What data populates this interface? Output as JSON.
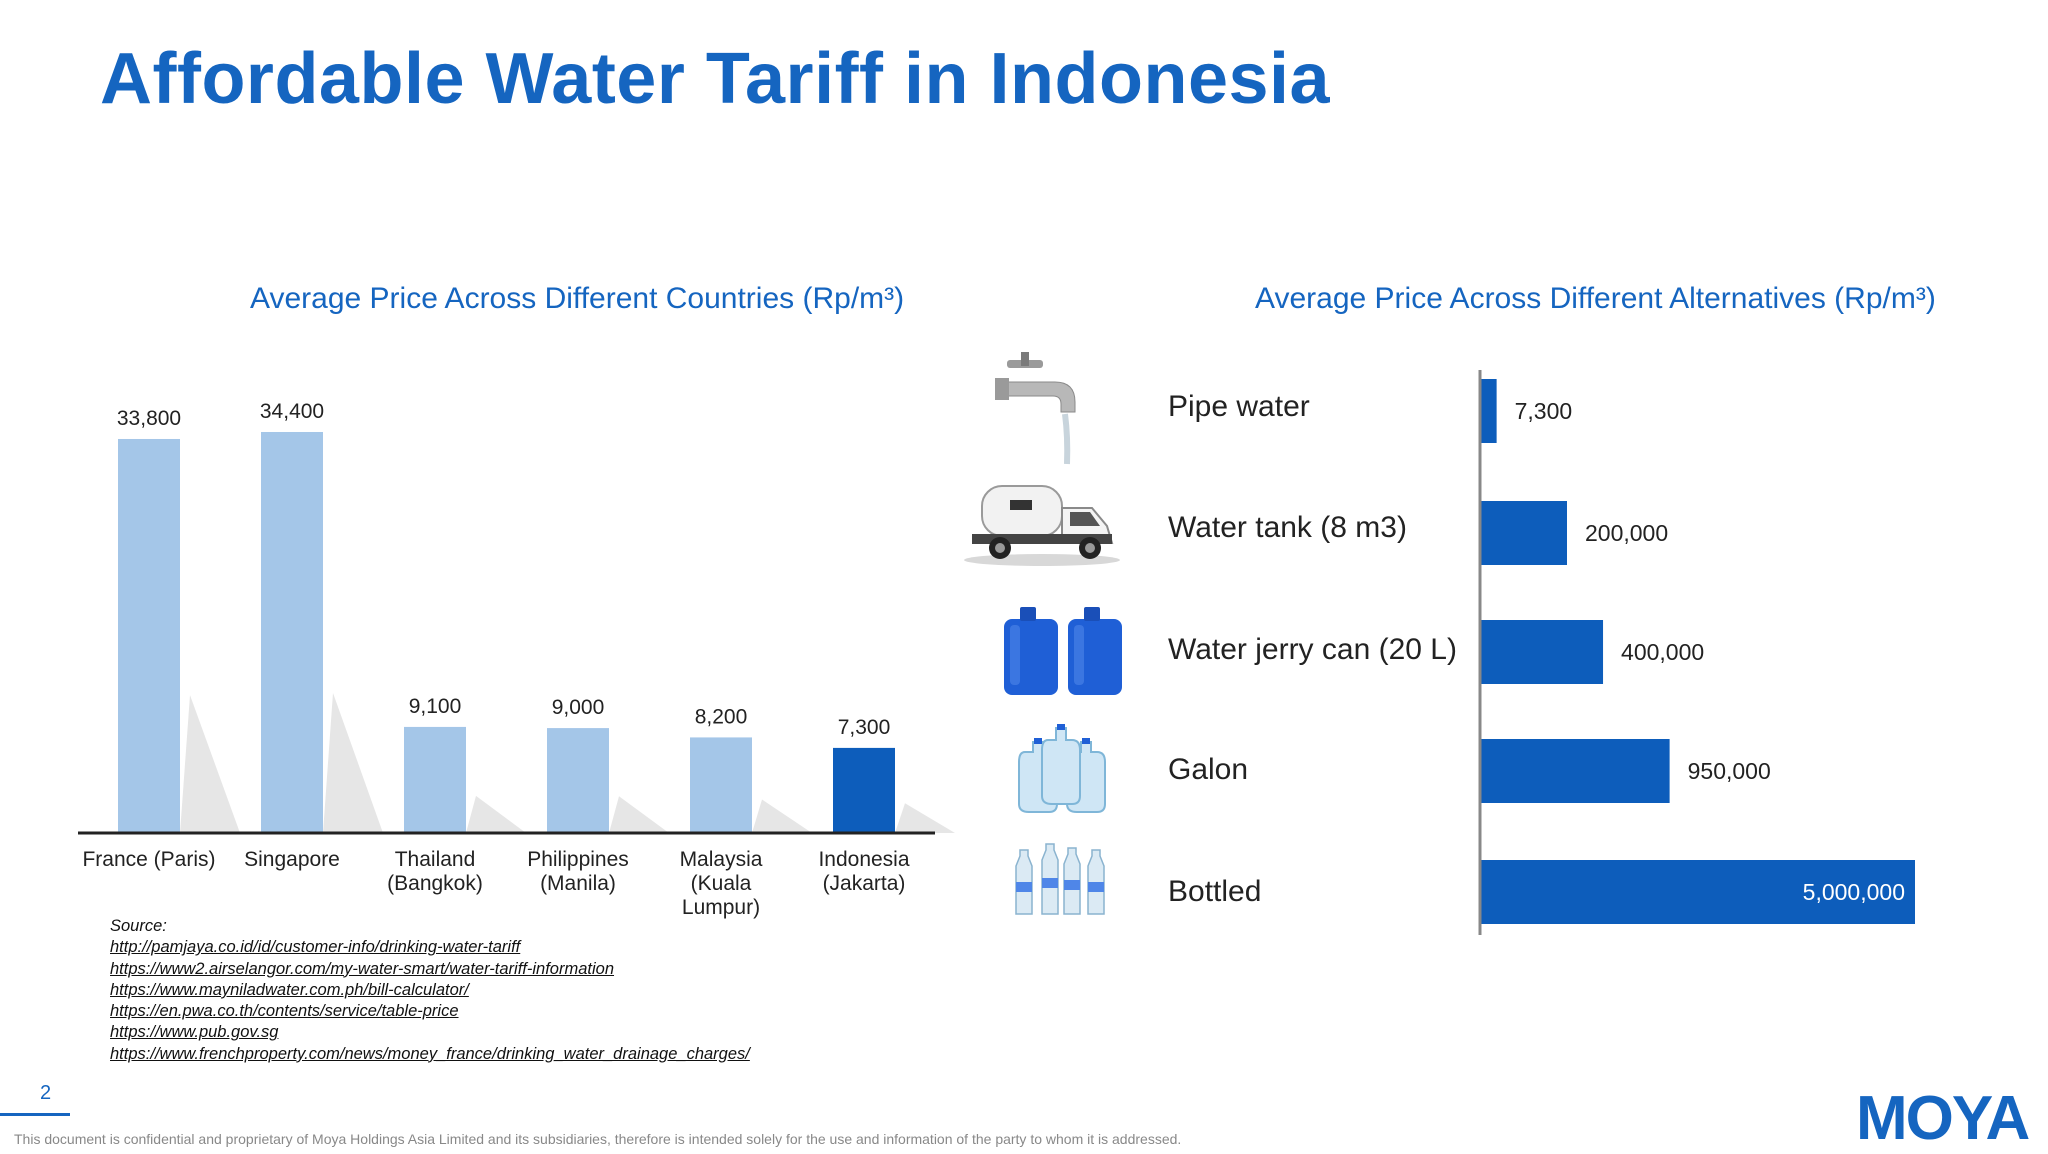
{
  "title": "Affordable Water Tariff in Indonesia",
  "chart_data": [
    {
      "type": "bar",
      "title": "Average Price Across Different Countries (Rp/m³)",
      "categories": [
        "France (Paris)",
        "Singapore",
        "Thailand (Bangkok)",
        "Philippines (Manila)",
        "Malaysia (Kuala Lumpur)",
        "Indonesia (Jakarta)"
      ],
      "category_lines": [
        [
          "France (Paris)"
        ],
        [
          "Singapore"
        ],
        [
          "Thailand",
          "(Bangkok)"
        ],
        [
          "Philippines",
          "(Manila)"
        ],
        [
          "Malaysia",
          "(Kuala",
          "Lumpur)"
        ],
        [
          "Indonesia",
          "(Jakarta)"
        ]
      ],
      "values": [
        33800,
        34400,
        9100,
        9000,
        8200,
        7300
      ],
      "value_labels": [
        "33,800",
        "34,400",
        "9,100",
        "9,000",
        "8,200",
        "7,300"
      ],
      "highlight_index": 5,
      "colors": {
        "default": "#a4c6e8",
        "highlight": "#0d5dbb"
      },
      "ylim": [
        0,
        35000
      ],
      "grid": false
    },
    {
      "type": "bar",
      "orientation": "horizontal",
      "title": "Average Price Across Different Alternatives (Rp/m³)",
      "categories": [
        "Pipe water",
        "Water tank (8 m3)",
        "Water jerry can (20 L)",
        "Galon",
        "Bottled"
      ],
      "values": [
        7300,
        200000,
        400000,
        950000,
        5000000
      ],
      "value_labels": [
        "7,300",
        "200,000",
        "400,000",
        "950,000",
        "5,000,000"
      ],
      "color": "#0d5dbb",
      "grid": false
    }
  ],
  "icons": [
    "faucet-icon",
    "water-truck-icon",
    "jerry-can-icon",
    "galon-icon",
    "bottled-water-icon"
  ],
  "sources": {
    "label": "Source:",
    "links": [
      "http://pamjaya.co.id/id/customer-info/drinking-water-tariff",
      "https://www2.airselangor.com/my-water-smart/water-tariff-information",
      "https://www.mayniladwater.com.ph/bill-calculator/",
      "https://en.pwa.co.th/contents/service/table-price",
      "https://www.pub.gov.sg",
      "https://www.frenchproperty.com/news/money_france/drinking_water_drainage_charges/"
    ]
  },
  "page_number": "2",
  "footer": "This document is confidential and proprietary of Moya Holdings Asia Limited and its subsidiaries, therefore is intended solely for the use and information of the party to whom it is addressed.",
  "logo": "MOYA"
}
